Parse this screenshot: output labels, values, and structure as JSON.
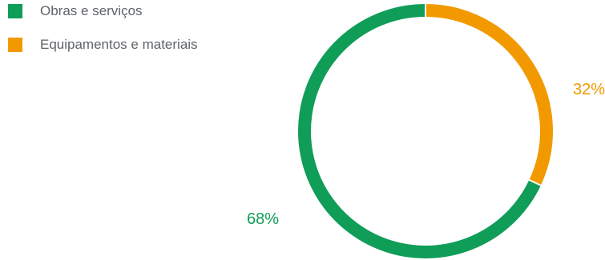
{
  "chart_data": {
    "type": "pie",
    "title": "",
    "categories": [
      "Obras e serviços",
      "Equipamentos e materiais"
    ],
    "values": [
      68,
      32
    ],
    "labels": [
      "68%",
      "32%"
    ],
    "colors": [
      "#0f9d58",
      "#f29900"
    ],
    "legend_position": "top-left",
    "style": "donut"
  }
}
